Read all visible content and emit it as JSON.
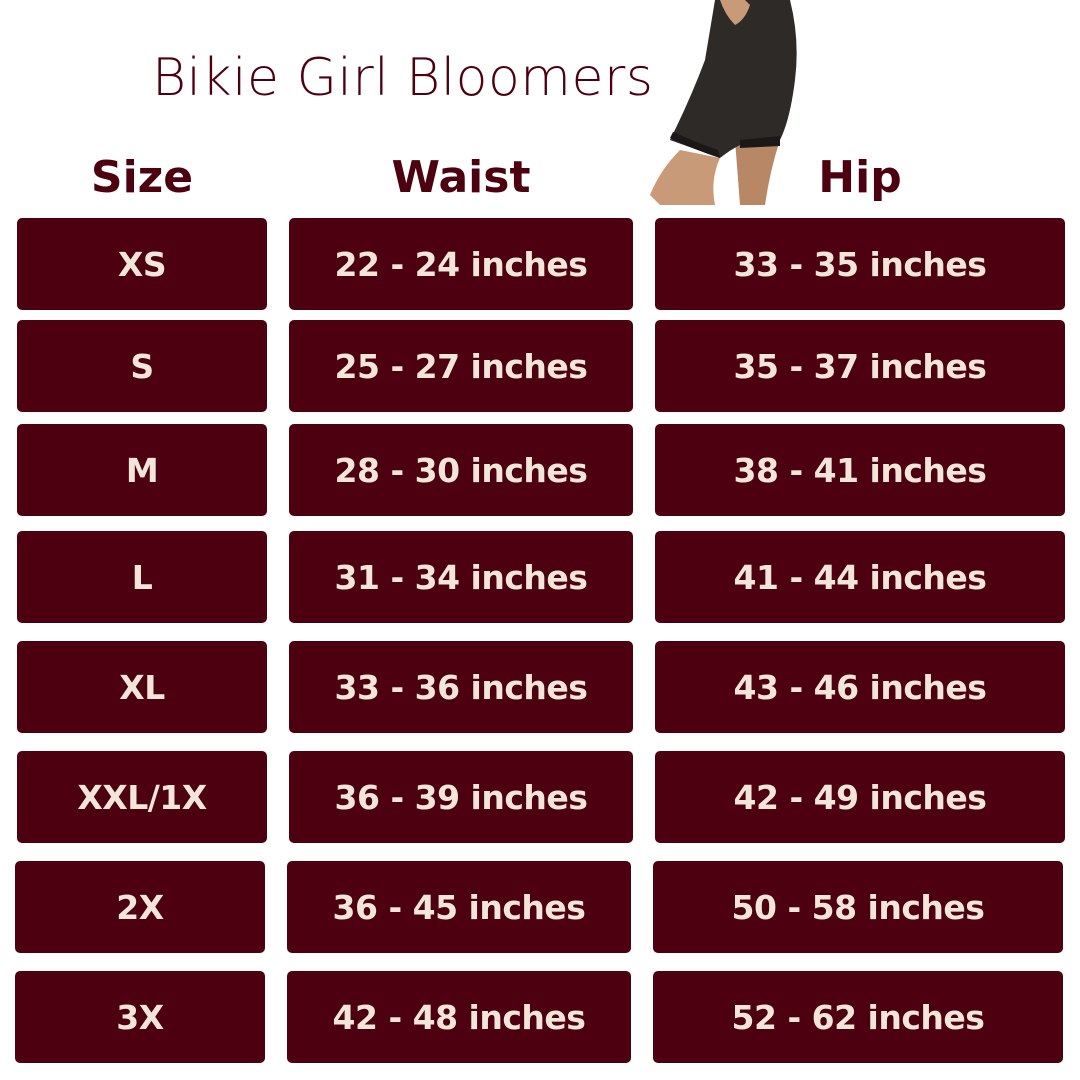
{
  "title": "Bikie Girl Bloomers",
  "headers": {
    "size": "Size",
    "waist": "Waist",
    "hip": "Hip"
  },
  "rows": [
    {
      "size": "XS",
      "waist": "22 - 24 inches",
      "hip": "33 - 35 inches"
    },
    {
      "size": "S",
      "waist": "25 - 27 inches",
      "hip": "35 - 37 inches"
    },
    {
      "size": "M",
      "waist": "28 - 30 inches",
      "hip": "38 - 41 inches"
    },
    {
      "size": "L",
      "waist": "31 - 34 inches",
      "hip": "41 - 44 inches"
    },
    {
      "size": "XL",
      "waist": "33 - 36 inches",
      "hip": "43 - 46 inches"
    },
    {
      "size": "XXL/1X",
      "waist": "36 - 39 inches",
      "hip": "42 - 49 inches"
    },
    {
      "size": "2X",
      "waist": "36 - 45 inches",
      "hip": "50 - 58 inches"
    },
    {
      "size": "3X",
      "waist": "42 - 48 inches",
      "hip": "52 - 62 inches"
    }
  ],
  "colors": {
    "accent": "#4d0010",
    "cell_text": "#f2e6da",
    "background": "#ffffff"
  },
  "image": "product-photo-black-lace-trim-bloomers"
}
